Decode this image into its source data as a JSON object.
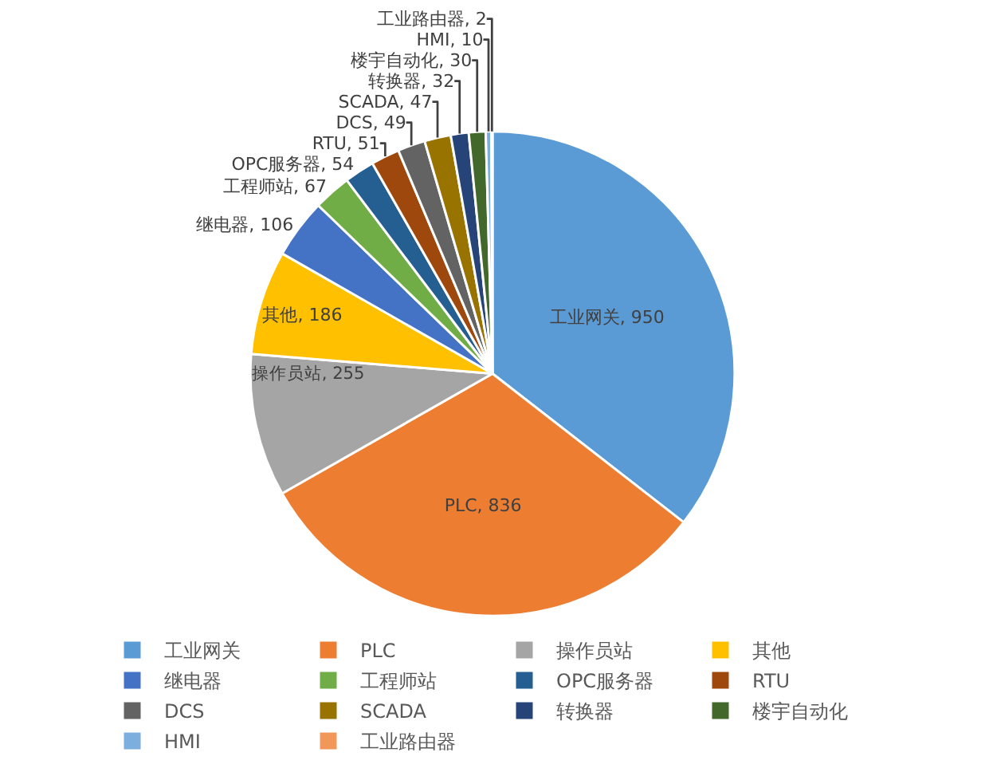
{
  "chart_data": {
    "type": "pie",
    "categories": [
      "工业网关",
      "PLC",
      "操作员站",
      "其他",
      "继电器",
      "工程师站",
      "OPC服务器",
      "RTU",
      "DCS",
      "SCADA",
      "转换器",
      "楼宇自动化",
      "HMI",
      "工业路由器"
    ],
    "values": [
      950,
      836,
      255,
      186,
      106,
      67,
      54,
      51,
      49,
      47,
      32,
      30,
      10,
      2
    ],
    "colors": [
      "#5b9bd5",
      "#ed7d31",
      "#a5a5a5",
      "#ffc000",
      "#4472c4",
      "#70ad47",
      "#255e91",
      "#9e480e",
      "#636363",
      "#997300",
      "#264478",
      "#43682b",
      "#7cafdd",
      "#f1975a"
    ],
    "value_labels": [
      "工业网关, 950",
      "PLC, 836",
      "操作员站, 255",
      "其他, 186",
      "继电器, 106",
      "工程师站, 67",
      "OPC服务器, 54",
      "RTU, 51",
      "DCS, 49",
      "SCADA, 47",
      "转换器, 32",
      "楼宇自动化, 30",
      "HMI, 10",
      "工业路由器, 2"
    ],
    "legend": "bottom"
  }
}
